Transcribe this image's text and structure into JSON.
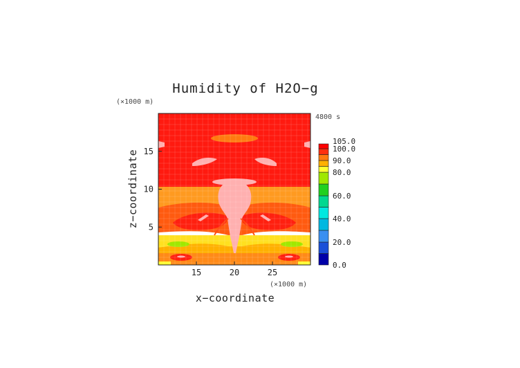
{
  "chart_data": {
    "type": "heatmap",
    "title": "Humidity of H2O−g",
    "xlabel": "x−coordinate",
    "ylabel": "z−coordinate",
    "x_unit": "(×1000 m)",
    "y_unit": "(×1000 m)",
    "time_label": "4800 s",
    "xlim": [
      10,
      30
    ],
    "ylim": [
      0,
      20
    ],
    "x_ticks": [
      "15",
      "20",
      "25"
    ],
    "x_tick_values": [
      15,
      20,
      25
    ],
    "y_ticks": [
      "5",
      "10",
      "15"
    ],
    "y_tick_values": [
      5,
      10,
      15
    ],
    "colorbar": {
      "levels": [
        0,
        10,
        20,
        30,
        40,
        50,
        60,
        70,
        80,
        85,
        90,
        95,
        100,
        105
      ],
      "colors": [
        "#0000a8",
        "#1a4fd8",
        "#3a8ff0",
        "#00b8e0",
        "#00e8e0",
        "#00d890",
        "#20d020",
        "#a0e800",
        "#ffff30",
        "#ffb000",
        "#ff7a10",
        "#ff3010",
        "#ff0000",
        "#ffffff"
      ],
      "tick_labels": [
        "0.0",
        "20.0",
        "40.0",
        "60.0",
        "80.0",
        "90.0",
        "100.0",
        "105.0"
      ],
      "tick_values": [
        0,
        20,
        40,
        60,
        80,
        90,
        100,
        105
      ]
    },
    "regions": [
      {
        "name": "upper-saturated",
        "x": [
          10,
          30
        ],
        "z": [
          9,
          20
        ],
        "value": 98
      },
      {
        "name": "high-orange-band",
        "x": [
          10,
          30
        ],
        "z": [
          5.5,
          9
        ],
        "value": 90
      },
      {
        "name": "mid-yellow-band",
        "x": [
          10,
          30
        ],
        "z": [
          2,
          5.5
        ],
        "value": 80
      },
      {
        "name": "surface-layer",
        "x": [
          10,
          30
        ],
        "z": [
          0,
          2
        ],
        "value": 88
      },
      {
        "name": "central-plume",
        "x": [
          18.6,
          21.4
        ],
        "z": [
          2,
          12.5
        ],
        "value": 102
      },
      {
        "name": "upper-cloud",
        "x": [
          17.5,
          22.5
        ],
        "z": [
          16.3,
          17.3
        ],
        "value": 93
      }
    ]
  }
}
